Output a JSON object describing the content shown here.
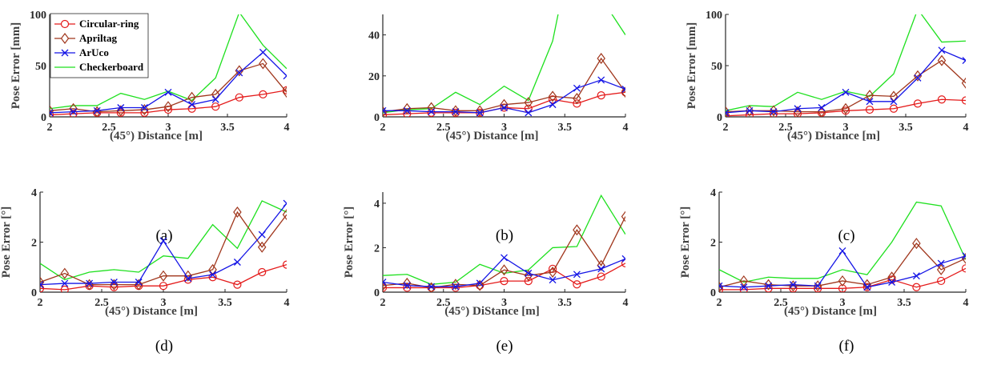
{
  "colors": {
    "circular": "#e41a1a",
    "apriltag": "#a0361c",
    "aruco": "#1414e6",
    "checkerboard": "#1ee01e",
    "axis": "#262626"
  },
  "legend": [
    "Circular-ring",
    "Apriltag",
    "ArUco",
    "Checkerboard"
  ],
  "chart_data": [
    {
      "type": "line",
      "panel": "(a)",
      "xlabel": "(45°) Distance [m]",
      "ylabel": "Pose Error [mm]",
      "xlim": [
        2,
        4
      ],
      "ylim": [
        0,
        100
      ],
      "xticks": [
        2,
        2.5,
        3,
        3.5,
        4
      ],
      "yticks": [
        0,
        50,
        100
      ],
      "x": [
        2,
        2.2,
        2.4,
        2.6,
        2.8,
        3,
        3.2,
        3.4,
        3.6,
        3.8,
        4
      ],
      "series": [
        {
          "name": "Circular-ring",
          "values": [
            2,
            3,
            4,
            4,
            4,
            7,
            8,
            10,
            19,
            22,
            26
          ]
        },
        {
          "name": "Apriltag",
          "values": [
            6,
            8,
            5,
            6,
            7,
            10,
            19,
            22,
            45,
            52,
            24
          ]
        },
        {
          "name": "ArUco",
          "values": [
            4,
            5,
            6,
            9,
            9,
            24,
            12,
            17,
            43,
            63,
            40
          ]
        },
        {
          "name": "Checkerboard",
          "values": [
            8,
            11,
            11,
            23,
            17,
            25,
            16,
            38,
            102,
            70,
            47
          ]
        }
      ]
    },
    {
      "type": "line",
      "panel": "(b)",
      "xlabel": "(45°) Distance [m]",
      "ylabel": "",
      "xlim": [
        2,
        4
      ],
      "ylim": [
        0,
        50
      ],
      "xticks": [
        2,
        2.5,
        3,
        3.5,
        4
      ],
      "yticks": [
        0,
        20,
        40
      ],
      "x": [
        2,
        2.2,
        2.4,
        2.6,
        2.8,
        3,
        3.2,
        3.4,
        3.6,
        3.8,
        4
      ],
      "series": [
        {
          "name": "Circular-ring",
          "values": [
            1,
            1.5,
            2,
            2,
            2,
            4.5,
            4,
            8.5,
            6.5,
            10.5,
            12
          ]
        },
        {
          "name": "Apriltag",
          "values": [
            2.5,
            4,
            4.5,
            3,
            3,
            6,
            7,
            10,
            9,
            28.5,
            12
          ]
        },
        {
          "name": "ArUco",
          "values": [
            3,
            3,
            2.5,
            2.5,
            2,
            4.5,
            2,
            6,
            14,
            18,
            13.5
          ]
        },
        {
          "name": "Checkerboard",
          "values": [
            2,
            3.5,
            4,
            12,
            6,
            15,
            8,
            37,
            95,
            58,
            40
          ]
        }
      ]
    },
    {
      "type": "line",
      "panel": "(c)",
      "xlabel": "(45°) Distance [m]",
      "ylabel": "Pose Error [mm]",
      "xlim": [
        2,
        4
      ],
      "ylim": [
        0,
        100
      ],
      "xticks": [
        2,
        2.5,
        3,
        3.5,
        4
      ],
      "yticks": [
        0,
        50,
        100
      ],
      "x": [
        2,
        2.2,
        2.4,
        2.6,
        2.8,
        3,
        3.2,
        3.4,
        3.6,
        3.8,
        4
      ],
      "series": [
        {
          "name": "Circular-ring",
          "values": [
            1,
            2,
            3,
            3,
            4,
            6,
            7,
            8,
            13,
            17,
            16
          ]
        },
        {
          "name": "Apriltag",
          "values": [
            5,
            6,
            6,
            5,
            5,
            8,
            21,
            20,
            40,
            55,
            33
          ]
        },
        {
          "name": "ArUco",
          "values": [
            4,
            6,
            5,
            8,
            9,
            24,
            15,
            15,
            38,
            65,
            55
          ]
        },
        {
          "name": "Checkerboard",
          "values": [
            6,
            11,
            10,
            24,
            17,
            25,
            20,
            42,
            105,
            73,
            74
          ]
        }
      ]
    },
    {
      "type": "line",
      "panel": "(d)",
      "xlabel": "(45°) Distance [m]",
      "ylabel": "Pose Error [°]",
      "xlim": [
        2,
        4
      ],
      "ylim": [
        0,
        4
      ],
      "xticks": [
        2,
        2.5,
        3,
        3.5,
        4
      ],
      "yticks": [
        0,
        2,
        4
      ],
      "x": [
        2,
        2.2,
        2.4,
        2.6,
        2.8,
        3,
        3.2,
        3.4,
        3.6,
        3.8,
        4
      ],
      "series": [
        {
          "name": "Circular-ring",
          "values": [
            0.15,
            0.1,
            0.25,
            0.2,
            0.25,
            0.25,
            0.5,
            0.6,
            0.3,
            0.8,
            1.1
          ]
        },
        {
          "name": "Apriltag",
          "values": [
            0.4,
            0.75,
            0.3,
            0.3,
            0.3,
            0.65,
            0.65,
            0.9,
            3.2,
            1.8,
            3.1
          ]
        },
        {
          "name": "ArUco",
          "values": [
            0.3,
            0.35,
            0.35,
            0.4,
            0.4,
            2.05,
            0.55,
            0.7,
            1.2,
            2.3,
            3.55
          ]
        },
        {
          "name": "Checkerboard",
          "values": [
            1.15,
            0.5,
            0.8,
            0.9,
            0.8,
            1.45,
            1.35,
            2.7,
            1.75,
            3.65,
            3.2
          ]
        }
      ]
    },
    {
      "type": "line",
      "panel": "(e)",
      "xlabel": "(45°) DiStance [m]",
      "ylabel": "Pose Error [°]",
      "xlim": [
        2,
        4
      ],
      "ylim": [
        0,
        4.5
      ],
      "xticks": [
        2,
        2.5,
        3,
        3.5,
        4
      ],
      "yticks": [
        0,
        2,
        4
      ],
      "x": [
        2,
        2.2,
        2.4,
        2.6,
        2.8,
        3,
        3.2,
        3.4,
        3.6,
        3.8,
        4
      ],
      "series": [
        {
          "name": "Circular-ring",
          "values": [
            0.2,
            0.2,
            0.2,
            0.2,
            0.3,
            0.5,
            0.5,
            1.05,
            0.35,
            0.7,
            1.3
          ]
        },
        {
          "name": "Apriltag",
          "values": [
            0.3,
            0.4,
            0.2,
            0.35,
            0.3,
            1.0,
            0.75,
            0.9,
            2.8,
            1.2,
            3.4
          ]
        },
        {
          "name": "ArUco",
          "values": [
            0.45,
            0.3,
            0.25,
            0.25,
            0.4,
            1.55,
            0.85,
            0.55,
            0.8,
            1.05,
            1.5
          ]
        },
        {
          "name": "Checkerboard",
          "values": [
            0.75,
            0.8,
            0.35,
            0.45,
            1.25,
            0.85,
            1.0,
            2.0,
            2.05,
            4.35,
            2.6
          ]
        }
      ]
    },
    {
      "type": "line",
      "panel": "(f)",
      "xlabel": "(45°) Distance [m]",
      "ylabel": "Pose Error [°]",
      "xlim": [
        2,
        4
      ],
      "ylim": [
        0,
        4
      ],
      "xticks": [
        2,
        2.5,
        3,
        3.5,
        4
      ],
      "yticks": [
        0,
        2,
        4
      ],
      "x": [
        2,
        2.2,
        2.4,
        2.6,
        2.8,
        3,
        3.2,
        3.4,
        3.6,
        3.8,
        4
      ],
      "series": [
        {
          "name": "Circular-ring",
          "values": [
            0.1,
            0.1,
            0.15,
            0.15,
            0.15,
            0.15,
            0.2,
            0.5,
            0.2,
            0.45,
            0.95
          ]
        },
        {
          "name": "Apriltag",
          "values": [
            0.2,
            0.45,
            0.3,
            0.25,
            0.25,
            0.45,
            0.3,
            0.6,
            1.95,
            0.9,
            1.35
          ]
        },
        {
          "name": "ArUco",
          "values": [
            0.25,
            0.2,
            0.25,
            0.3,
            0.25,
            1.65,
            0.2,
            0.4,
            0.65,
            1.15,
            1.45
          ]
        },
        {
          "name": "Checkerboard",
          "values": [
            0.9,
            0.4,
            0.6,
            0.55,
            0.55,
            0.9,
            0.7,
            2.0,
            3.6,
            3.45,
            1.3
          ]
        }
      ]
    }
  ]
}
